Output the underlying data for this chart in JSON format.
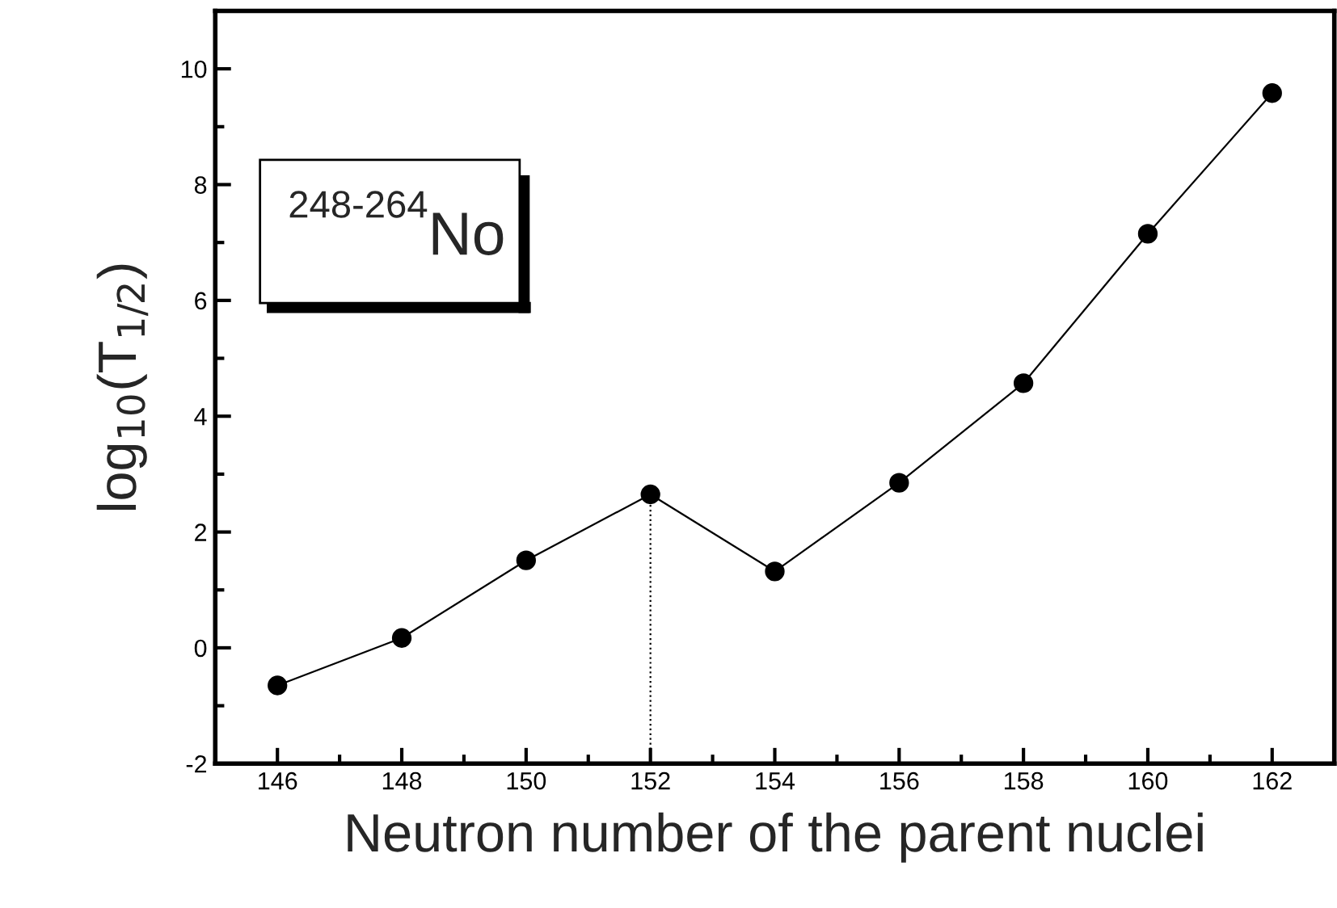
{
  "chart_data": {
    "type": "line",
    "xlabel": "Neutron number of the parent nuclei",
    "ylabel": "log$_{10}$(T$_{1/2}$)",
    "annotations": [
      "$^{248-264}$No"
    ],
    "series": [
      {
        "color": "#000000",
        "marker": "circle",
        "line_style": "solid",
        "x": [
          146,
          148,
          150,
          152,
          154,
          156,
          158,
          160,
          162
        ],
        "values": [
          -0.65,
          0.17,
          1.51,
          2.65,
          1.32,
          2.85,
          4.57,
          7.15,
          9.58
        ]
      },
      {
        "color": "#000000",
        "marker": "none",
        "line_style": "dotted",
        "x": [
          152,
          152
        ],
        "values": [
          -2,
          2.65
        ]
      }
    ],
    "xlim": [
      145,
      163
    ],
    "ylim": [
      -2,
      11
    ],
    "xticks": [
      146,
      148,
      150,
      152,
      154,
      156,
      158,
      160,
      162
    ],
    "yticks": [
      -2,
      0,
      2,
      4,
      6,
      8,
      10
    ],
    "grid": false,
    "legend": false
  }
}
